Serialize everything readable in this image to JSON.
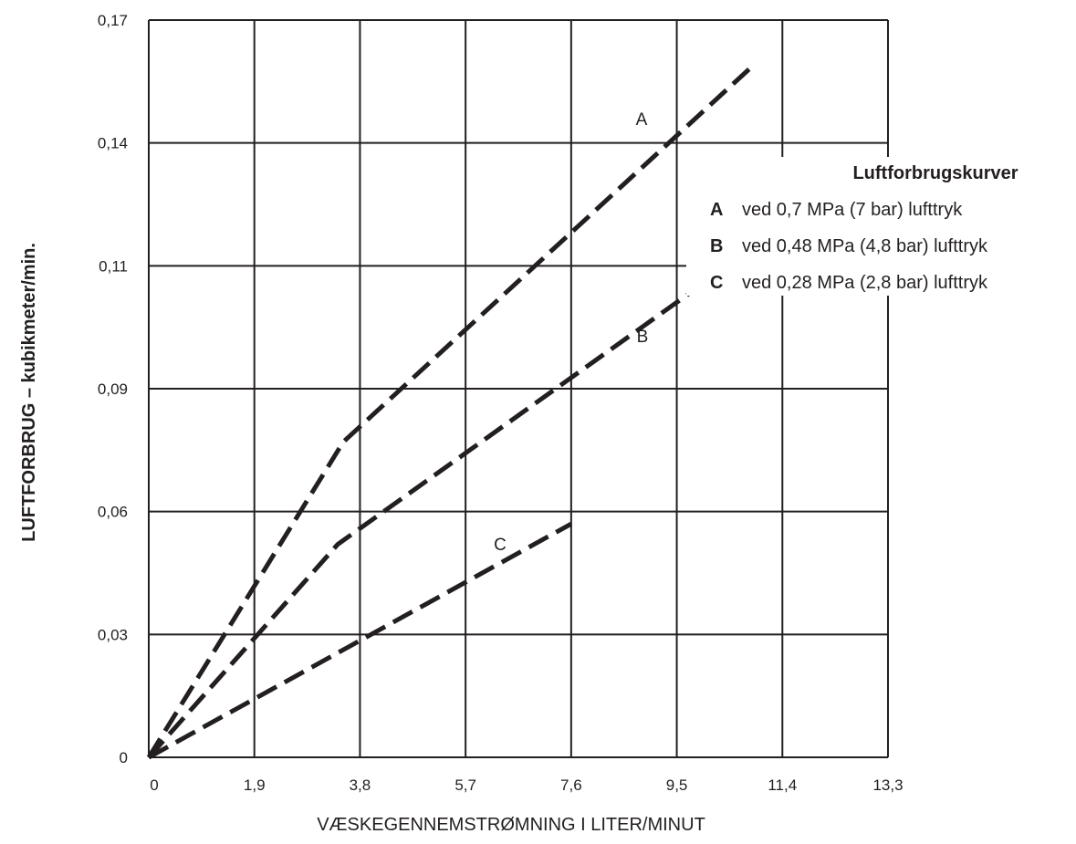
{
  "chart_data": {
    "type": "line",
    "xlabel": "VÆSKEGENNEMSTRØMNING I LITER/MINUT",
    "ylabel": "LUFTFORBRUG – kubikmeter/min.",
    "x_ticks": [
      "0",
      "1,9",
      "3,8",
      "5,7",
      "7,6",
      "9,5",
      "11,4",
      "13,3"
    ],
    "y_ticks": [
      "0",
      "0,03",
      "0,06",
      "0,09",
      "0,11",
      "0,14",
      "0,17"
    ],
    "xlim": [
      0,
      13.3
    ],
    "ylim": [
      0,
      0.17
    ],
    "grid": true,
    "line_style": "dashed",
    "series": [
      {
        "name": "A",
        "x": [
          0,
          3.5,
          10.8
        ],
        "y": [
          0,
          0.077,
          0.158
        ]
      },
      {
        "name": "B",
        "x": [
          0,
          3.4,
          9.8
        ],
        "y": [
          0,
          0.052,
          0.106
        ]
      },
      {
        "name": "C",
        "x": [
          0,
          7.6
        ],
        "y": [
          0,
          0.057
        ]
      }
    ],
    "legend": {
      "title": "Luftforbrugskurver",
      "placement": "right",
      "entries": [
        {
          "key": "A",
          "text": "ved 0,7 MPa (7 bar) lufttryk"
        },
        {
          "key": "B",
          "text": "ved 0,48 MPa (4,8 bar) lufttryk"
        },
        {
          "key": "C",
          "text": "ved 0,28 MPa (2,8 bar) lufttryk"
        }
      ]
    }
  }
}
